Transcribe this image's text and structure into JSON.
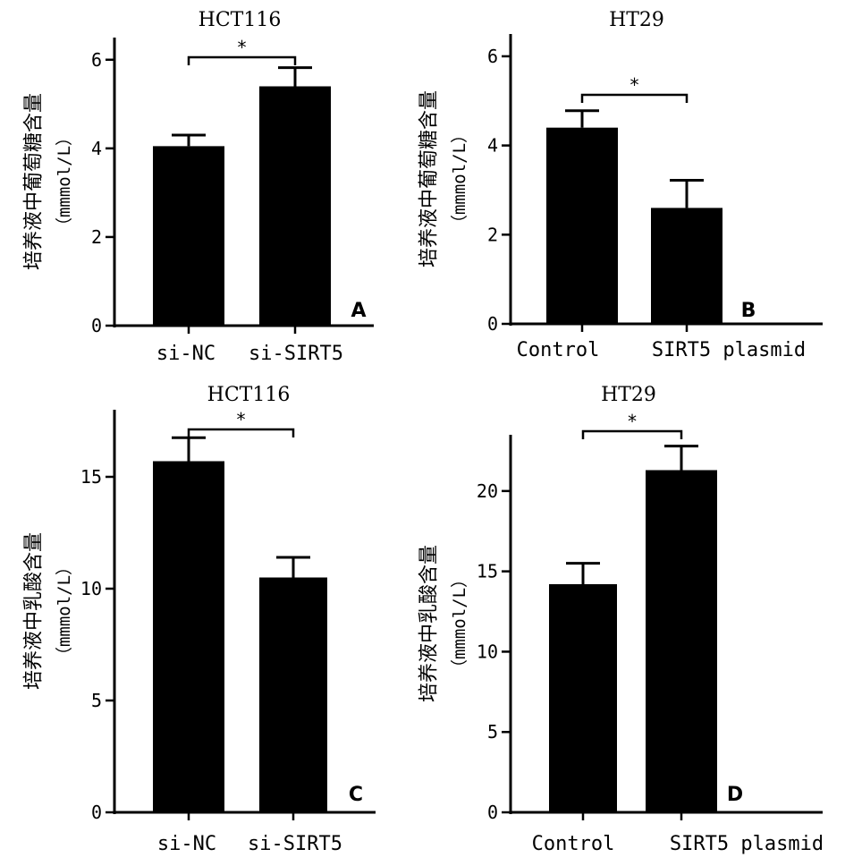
{
  "chart_data": [
    {
      "panel": "A",
      "type": "bar",
      "title": "HCT116",
      "ylabel_cn": "培养液中葡萄糖含量",
      "ylabel_unit": "（mmmol/L）",
      "categories": [
        "si-NC",
        "si-SIRT5"
      ],
      "series": [
        {
          "values": [
            4.05,
            5.4
          ],
          "errors": [
            0.25,
            0.42
          ]
        }
      ],
      "ylim": [
        0,
        6.5
      ],
      "yticks": [
        0,
        2,
        4,
        6
      ],
      "significance": "*"
    },
    {
      "panel": "B",
      "type": "bar",
      "title": "HT29",
      "ylabel_cn": "培养液中葡萄糖含量",
      "ylabel_unit": "（mmmol/L）",
      "categories": [
        "Control",
        "SIRT5 plasmid"
      ],
      "series": [
        {
          "values": [
            4.4,
            2.6
          ],
          "errors": [
            0.38,
            0.62
          ]
        }
      ],
      "ylim": [
        0,
        6.5
      ],
      "yticks": [
        0,
        2,
        4,
        6
      ],
      "significance": "*"
    },
    {
      "panel": "C",
      "type": "bar",
      "title": "HCT116",
      "ylabel_cn": "培养液中乳酸含量",
      "ylabel_unit": "（mmmol/L）",
      "categories": [
        "si-NC",
        "si-SIRT5"
      ],
      "series": [
        {
          "values": [
            15.7,
            10.5
          ],
          "errors": [
            1.05,
            0.9
          ]
        }
      ],
      "ylim": [
        0,
        18
      ],
      "yticks": [
        0,
        5,
        10,
        15
      ],
      "significance": "*"
    },
    {
      "panel": "D",
      "type": "bar",
      "title": "HT29",
      "ylabel_cn": "培养液中乳酸含量",
      "ylabel_unit": "（mmmol/L）",
      "categories": [
        "Control",
        "SIRT5 plasmid"
      ],
      "series": [
        {
          "values": [
            14.2,
            21.3
          ],
          "errors": [
            1.3,
            1.5
          ]
        }
      ],
      "ylim": [
        0,
        23.5
      ],
      "yticks": [
        0,
        5,
        10,
        15,
        20
      ],
      "significance": "*"
    }
  ]
}
